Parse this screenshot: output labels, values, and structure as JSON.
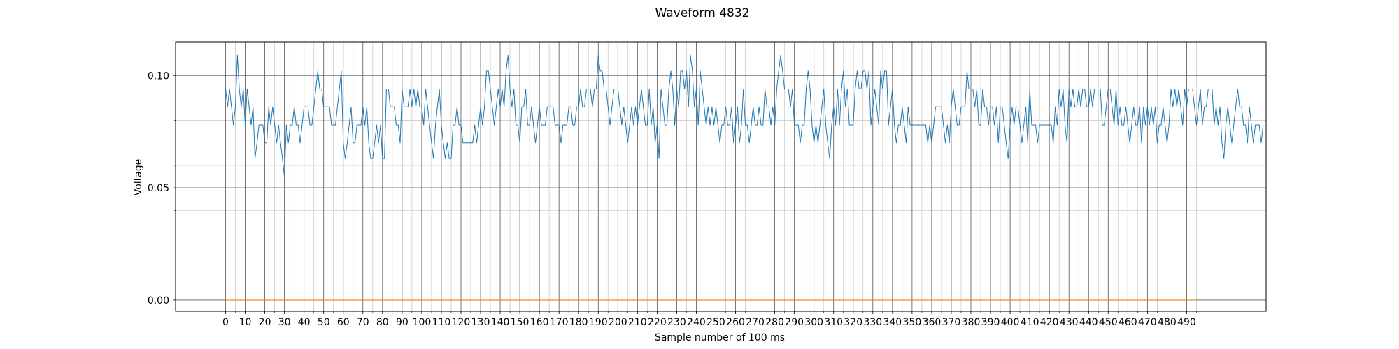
{
  "chart_data": {
    "type": "line",
    "title": "Waveform 4832",
    "xlabel": "Sample number of 100 ms",
    "ylabel": "Voltage",
    "xlim": [
      -25.5,
      530.5
    ],
    "ylim": [
      -0.005,
      0.115
    ],
    "x_major_ticks": [
      0,
      10,
      20,
      30,
      40,
      50,
      60,
      70,
      80,
      90,
      100,
      110,
      120,
      130,
      140,
      150,
      160,
      170,
      180,
      190,
      200,
      210,
      220,
      230,
      240,
      250,
      260,
      270,
      280,
      290,
      300,
      310,
      320,
      330,
      340,
      350,
      360,
      370,
      380,
      390,
      400,
      410,
      420,
      430,
      440,
      450,
      460,
      470,
      480,
      490
    ],
    "x_minor_ticks": [
      5,
      15,
      25,
      35,
      45,
      55,
      65,
      75,
      85,
      95,
      105,
      115,
      125,
      135,
      145,
      155,
      165,
      175,
      185,
      195,
      205,
      215,
      225,
      235,
      245,
      255,
      265,
      275,
      285,
      295,
      305,
      315,
      325,
      335,
      345,
      355,
      365,
      375,
      385,
      395,
      405,
      415,
      425,
      435,
      445,
      455,
      465,
      475,
      485,
      495
    ],
    "x_tick_labels": [
      "0",
      "10",
      "20",
      "30",
      "40",
      "50",
      "60",
      "70",
      "80",
      "90",
      "100",
      "110",
      "120",
      "130",
      "140",
      "150",
      "160",
      "170",
      "180",
      "190",
      "200",
      "210",
      "220",
      "230",
      "240",
      "250",
      "260",
      "270",
      "280",
      "290",
      "300",
      "310",
      "320",
      "330",
      "340",
      "350",
      "360",
      "370",
      "380",
      "390",
      "400",
      "410",
      "420",
      "430",
      "440",
      "450",
      "460",
      "470",
      "480",
      "490"
    ],
    "y_major_ticks": [
      0.0,
      0.05,
      0.1
    ],
    "y_minor_ticks": [
      0.02,
      0.04,
      0.06,
      0.08
    ],
    "y_tick_labels": [
      "0.00",
      "0.05",
      "0.10"
    ],
    "grid": true,
    "series": [
      {
        "color": "#1f77b4",
        "x_start": 0,
        "x_step": 1,
        "values": [
          0.094,
          0.086,
          0.094,
          0.086,
          0.078,
          0.086,
          0.109,
          0.094,
          0.086,
          0.094,
          0.078,
          0.094,
          0.086,
          0.078,
          0.086,
          0.063,
          0.07,
          0.078,
          0.078,
          0.078,
          0.07,
          0.07,
          0.086,
          0.078,
          0.086,
          0.078,
          0.07,
          0.078,
          0.07,
          0.063,
          0.055,
          0.078,
          0.07,
          0.078,
          0.078,
          0.086,
          0.078,
          0.078,
          0.07,
          0.078,
          0.086,
          0.086,
          0.086,
          0.078,
          0.078,
          0.086,
          0.094,
          0.102,
          0.094,
          0.094,
          0.086,
          0.086,
          0.086,
          0.086,
          0.078,
          0.078,
          0.078,
          0.086,
          0.094,
          0.102,
          0.07,
          0.063,
          0.07,
          0.078,
          0.086,
          0.07,
          0.07,
          0.078,
          0.078,
          0.078,
          0.086,
          0.078,
          0.086,
          0.07,
          0.063,
          0.063,
          0.07,
          0.078,
          0.07,
          0.078,
          0.063,
          0.063,
          0.094,
          0.094,
          0.086,
          0.086,
          0.086,
          0.078,
          0.078,
          0.07,
          0.094,
          0.086,
          0.086,
          0.086,
          0.094,
          0.086,
          0.094,
          0.086,
          0.094,
          0.086,
          0.086,
          0.078,
          0.094,
          0.086,
          0.078,
          0.07,
          0.063,
          0.078,
          0.086,
          0.094,
          0.078,
          0.07,
          0.063,
          0.07,
          0.063,
          0.063,
          0.078,
          0.078,
          0.086,
          0.078,
          0.078,
          0.07,
          0.07,
          0.07,
          0.07,
          0.07,
          0.07,
          0.078,
          0.07,
          0.078,
          0.086,
          0.078,
          0.086,
          0.102,
          0.102,
          0.094,
          0.086,
          0.078,
          0.086,
          0.094,
          0.086,
          0.094,
          0.086,
          0.102,
          0.109,
          0.094,
          0.086,
          0.094,
          0.078,
          0.078,
          0.07,
          0.086,
          0.086,
          0.094,
          0.078,
          0.078,
          0.086,
          0.078,
          0.07,
          0.078,
          0.086,
          0.078,
          0.078,
          0.078,
          0.086,
          0.086,
          0.086,
          0.086,
          0.078,
          0.078,
          0.078,
          0.07,
          0.078,
          0.078,
          0.078,
          0.086,
          0.086,
          0.078,
          0.078,
          0.086,
          0.086,
          0.094,
          0.086,
          0.086,
          0.094,
          0.094,
          0.094,
          0.086,
          0.094,
          0.094,
          0.109,
          0.102,
          0.102,
          0.094,
          0.094,
          0.086,
          0.078,
          0.086,
          0.094,
          0.094,
          0.094,
          0.086,
          0.078,
          0.086,
          0.078,
          0.07,
          0.078,
          0.086,
          0.078,
          0.086,
          0.078,
          0.086,
          0.094,
          0.086,
          0.078,
          0.078,
          0.094,
          0.078,
          0.086,
          0.07,
          0.078,
          0.063,
          0.094,
          0.086,
          0.078,
          0.078,
          0.094,
          0.102,
          0.094,
          0.078,
          0.094,
          0.086,
          0.102,
          0.102,
          0.094,
          0.102,
          0.086,
          0.109,
          0.102,
          0.086,
          0.094,
          0.078,
          0.102,
          0.094,
          0.086,
          0.078,
          0.086,
          0.078,
          0.086,
          0.078,
          0.086,
          0.078,
          0.07,
          0.078,
          0.078,
          0.086,
          0.078,
          0.078,
          0.086,
          0.07,
          0.078,
          0.086,
          0.07,
          0.078,
          0.094,
          0.078,
          0.078,
          0.07,
          0.078,
          0.086,
          0.078,
          0.078,
          0.086,
          0.078,
          0.078,
          0.094,
          0.086,
          0.086,
          0.078,
          0.086,
          0.078,
          0.094,
          0.102,
          0.109,
          0.102,
          0.094,
          0.094,
          0.094,
          0.086,
          0.094,
          0.078,
          0.078,
          0.078,
          0.07,
          0.078,
          0.078,
          0.094,
          0.102,
          0.094,
          0.078,
          0.07,
          0.078,
          0.07,
          0.078,
          0.086,
          0.094,
          0.078,
          0.07,
          0.063,
          0.078,
          0.086,
          0.078,
          0.094,
          0.078,
          0.094,
          0.102,
          0.086,
          0.094,
          0.078,
          0.078,
          0.078,
          0.094,
          0.102,
          0.094,
          0.094,
          0.102,
          0.102,
          0.094,
          0.102,
          0.078,
          0.086,
          0.094,
          0.086,
          0.078,
          0.102,
          0.094,
          0.102,
          0.102,
          0.078,
          0.086,
          0.094,
          0.078,
          0.07,
          0.078,
          0.078,
          0.086,
          0.078,
          0.07,
          0.086,
          0.078,
          0.078,
          0.078,
          0.078,
          0.078,
          0.078,
          0.078,
          0.078,
          0.078,
          0.07,
          0.078,
          0.07,
          0.078,
          0.086,
          0.086,
          0.086,
          0.086,
          0.078,
          0.07,
          0.078,
          0.07,
          0.086,
          0.094,
          0.086,
          0.078,
          0.078,
          0.086,
          0.086,
          0.086,
          0.102,
          0.094,
          0.094,
          0.094,
          0.086,
          0.094,
          0.078,
          0.078,
          0.094,
          0.086,
          0.086,
          0.078,
          0.086,
          0.086,
          0.078,
          0.086,
          0.07,
          0.086,
          0.086,
          0.078,
          0.07,
          0.063,
          0.078,
          0.086,
          0.078,
          0.086,
          0.086,
          0.078,
          0.07,
          0.078,
          0.086,
          0.07,
          0.094,
          0.078,
          0.078,
          0.078,
          0.07,
          0.078,
          0.078,
          0.078,
          0.078,
          0.078,
          0.078,
          0.078,
          0.07,
          0.086,
          0.078,
          0.094,
          0.086,
          0.094,
          0.078,
          0.07,
          0.094,
          0.086,
          0.094,
          0.086,
          0.086,
          0.094,
          0.086,
          0.094,
          0.094,
          0.086,
          0.086,
          0.094,
          0.086,
          0.094,
          0.094,
          0.094,
          0.094,
          0.078,
          0.078,
          0.086,
          0.094,
          0.094,
          0.086,
          0.078,
          0.094,
          0.078,
          0.086,
          0.078,
          0.078,
          0.086,
          0.078,
          0.07,
          0.078,
          0.086,
          0.078,
          0.078,
          0.086,
          0.07,
          0.086,
          0.078,
          0.086,
          0.078,
          0.086,
          0.078,
          0.086,
          0.07,
          0.078,
          0.078,
          0.086,
          0.078,
          0.07,
          0.078,
          0.094,
          0.086,
          0.094,
          0.086,
          0.094,
          0.086,
          0.078,
          0.094,
          0.086,
          0.094,
          0.094,
          0.094,
          0.086,
          0.078,
          0.086,
          0.094,
          0.078,
          0.086,
          0.086,
          0.094,
          0.094,
          0.094,
          0.078,
          0.086,
          0.078,
          0.086,
          0.07,
          0.063,
          0.078,
          0.086,
          0.078,
          0.07,
          0.078,
          0.086,
          0.094,
          0.086,
          0.086,
          0.078,
          0.078,
          0.07,
          0.086,
          0.078,
          0.07,
          0.078,
          0.078,
          0.078,
          0.07,
          0.078
        ]
      },
      {
        "color": "#ff7f0e",
        "x": [
          0,
          495
        ],
        "values": [
          0.0,
          0.0
        ]
      }
    ]
  }
}
